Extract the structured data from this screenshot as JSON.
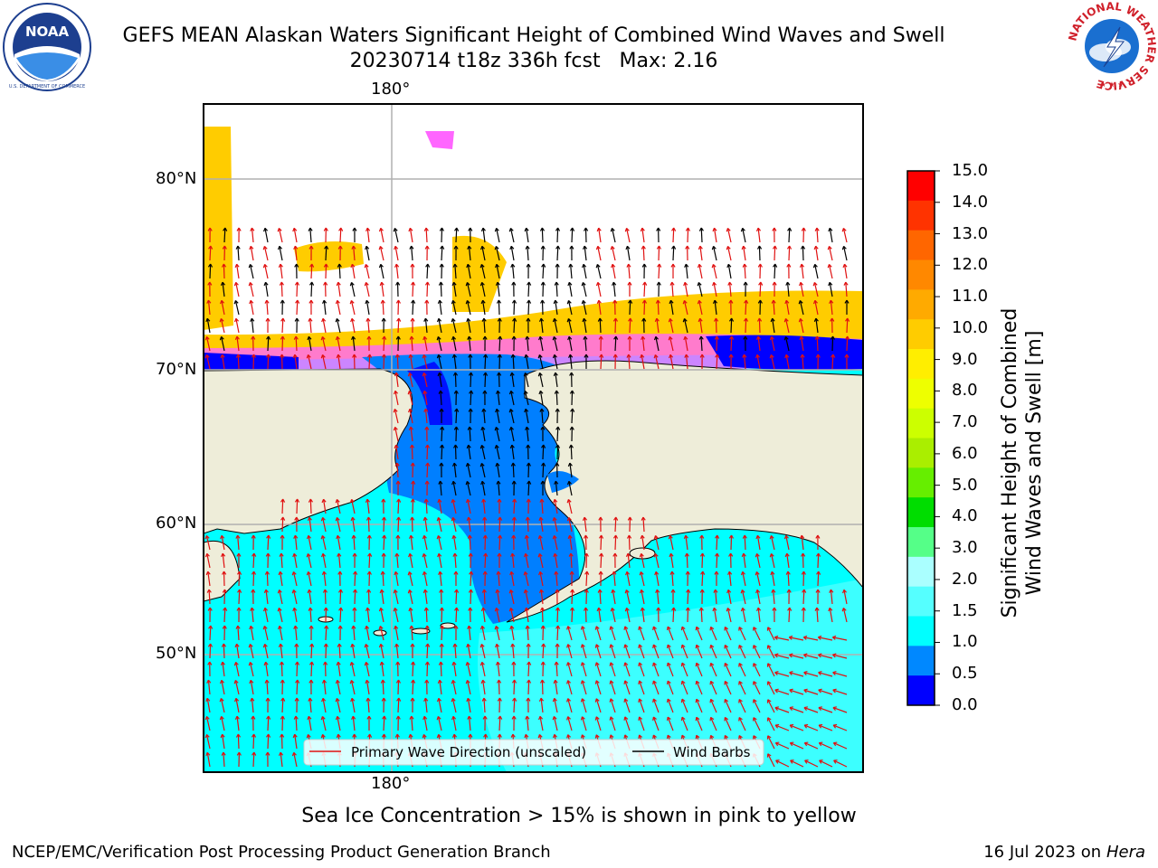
{
  "title": {
    "line1": "GEFS MEAN Alaskan Waters Significant Height of Combined Wind Waves and Swell",
    "line2": "20230714 t18z 336h fcst   Max: 2.16"
  },
  "logos": {
    "left": {
      "text": "NOAA",
      "ring_text": "NATIONAL OCEANIC AND ATMOSPHERIC ADMINISTRATION · U.S. DEPARTMENT OF COMMERCE",
      "color": "#1d3f8f"
    },
    "right": {
      "ring_text": "NATIONAL WEATHER SERVICE",
      "color": "#d0202a"
    }
  },
  "map": {
    "lon_label_top": "180°",
    "lon_label_bottom": "180°",
    "lat_labels": [
      "80°N",
      "70°N",
      "60°N",
      "50°N"
    ],
    "legend": {
      "wave_label": "Primary Wave Direction (unscaled)",
      "wind_label": "Wind Barbs",
      "wave_color": "#e01010",
      "wind_color": "#000000"
    },
    "colors": {
      "land": "#eeedd9",
      "ocean_low": "#00ffff",
      "ocean_mid": "#007fff",
      "ocean_calm": "#0000ff",
      "ice_pink": "#ff66ff",
      "ice_yellow": "#ffee00",
      "ice_orange": "#ffcc00",
      "grid": "#b0b0b0"
    }
  },
  "colorbar": {
    "title_line1": "Significant Height of Combined",
    "title_line2": "Wind Waves and Swell [m]",
    "ticks": [
      "15.0",
      "14.0",
      "13.0",
      "12.0",
      "11.0",
      "10.0",
      "9.0",
      "8.0",
      "7.0",
      "6.0",
      "5.0",
      "4.0",
      "3.0",
      "2.0",
      "1.5",
      "1.0",
      "0.5",
      "0.0"
    ],
    "colors_top_to_bottom": [
      "#ff0000",
      "#ff3300",
      "#ff6600",
      "#ff8800",
      "#ffaa00",
      "#ffcc00",
      "#ffee00",
      "#eeff00",
      "#ccff00",
      "#aaee00",
      "#66ee00",
      "#00dd00",
      "#55ff88",
      "#aaffff",
      "#55ffff",
      "#00ffff",
      "#0088ff",
      "#0000ff"
    ]
  },
  "caption": "Sea Ice Concentration > 15% is shown in pink to yellow",
  "footer": {
    "left": "NCEP/EMC/Verification Post Processing Product Generation Branch",
    "right_prefix": "16 Jul 2023 on ",
    "right_italic": "Hera"
  }
}
